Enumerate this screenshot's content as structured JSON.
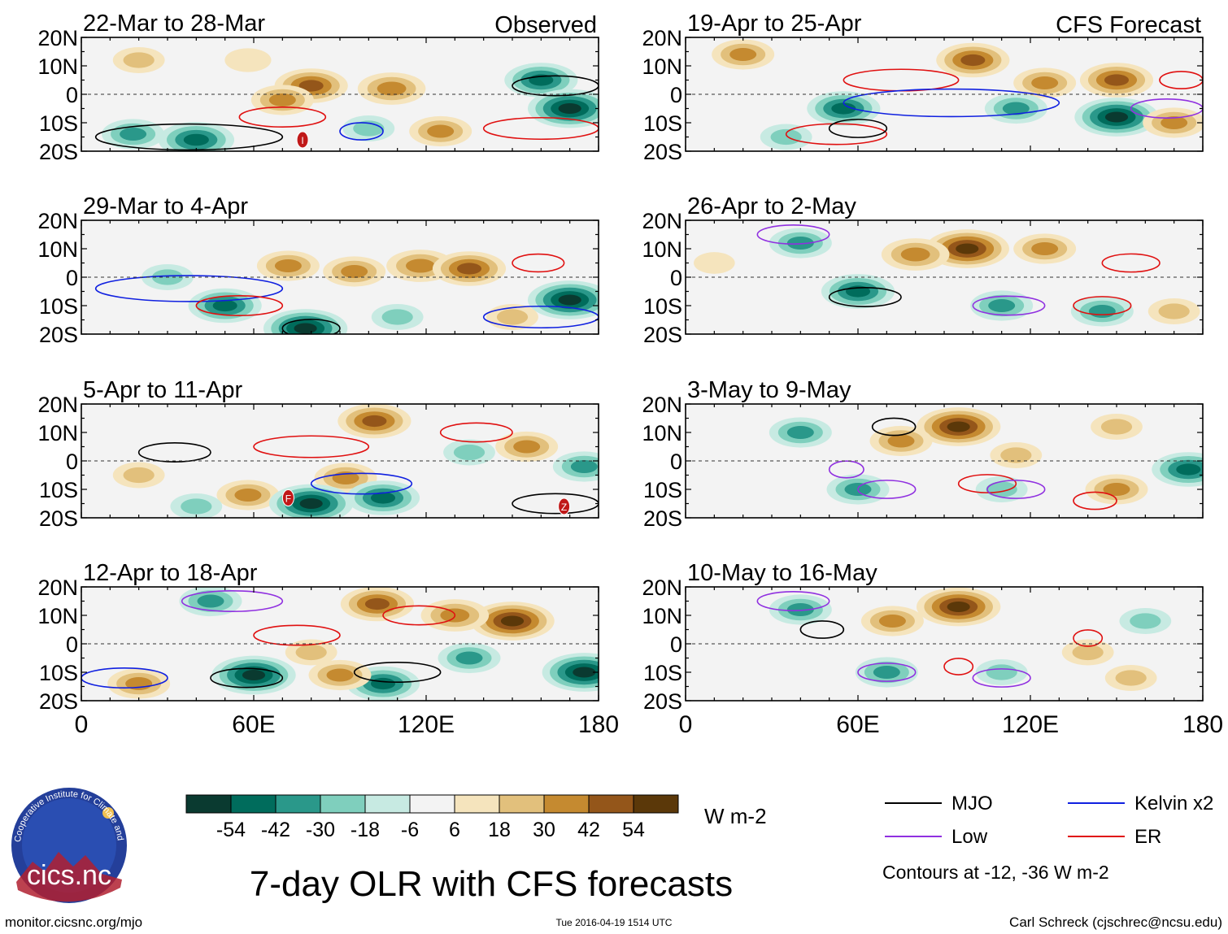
{
  "chart_data": {
    "type": "heatmap",
    "title": "7-day OLR with CFS forecasts",
    "variable": "OLR anomaly",
    "units": "W m-2",
    "x_ticks": [
      "0",
      "60E",
      "120E",
      "180"
    ],
    "x_range": [
      0,
      180
    ],
    "y_ticks": [
      "20N",
      "10N",
      "0",
      "10S",
      "20S"
    ],
    "y_range": [
      -20,
      20
    ],
    "columns": [
      {
        "label": "Observed",
        "panels": [
          {
            "period": "22-Mar to 28-Mar",
            "anomalies": [
              {
                "lon": 20,
                "lat": 12,
                "v": 18
              },
              {
                "lon": 40,
                "lat": -16,
                "v": -45
              },
              {
                "lon": 18,
                "lat": -14,
                "v": -30
              },
              {
                "lon": 80,
                "lat": 3,
                "v": 42
              },
              {
                "lon": 70,
                "lat": -2,
                "v": 30
              },
              {
                "lon": 108,
                "lat": 2,
                "v": 36
              },
              {
                "lon": 125,
                "lat": -13,
                "v": 30
              },
              {
                "lon": 160,
                "lat": 5,
                "v": -42
              },
              {
                "lon": 170,
                "lat": -5,
                "v": -54
              },
              {
                "lon": 100,
                "lat": -12,
                "v": -18
              },
              {
                "lon": 58,
                "lat": 12,
                "v": 12
              }
            ],
            "contours": [
              {
                "wave": "MJO",
                "lat": -15,
                "lon": [
                  5,
                  70
                ]
              },
              {
                "wave": "ER",
                "lat": -8,
                "lon": [
                  55,
                  85
                ]
              },
              {
                "wave": "ER",
                "lat": -12,
                "lon": [
                  140,
                  180
                ]
              },
              {
                "wave": "Kelvin",
                "lat": -13,
                "lon": [
                  90,
                  105
                ]
              },
              {
                "wave": "MJO",
                "lat": 3,
                "lon": [
                  150,
                  180
                ]
              }
            ],
            "cyclones": [
              {
                "label": "I",
                "lon": 77,
                "lat": -16
              }
            ]
          },
          {
            "period": "29-Mar to 4-Apr",
            "anomalies": [
              {
                "lon": 72,
                "lat": 4,
                "v": 30
              },
              {
                "lon": 95,
                "lat": 2,
                "v": 30
              },
              {
                "lon": 118,
                "lat": 4,
                "v": 36
              },
              {
                "lon": 135,
                "lat": 3,
                "v": 42
              },
              {
                "lon": 50,
                "lat": -10,
                "v": -42
              },
              {
                "lon": 78,
                "lat": -18,
                "v": -54
              },
              {
                "lon": 170,
                "lat": -8,
                "v": -54
              },
              {
                "lon": 30,
                "lat": 0,
                "v": -18
              },
              {
                "lon": 110,
                "lat": -14,
                "v": -18
              },
              {
                "lon": 150,
                "lat": -14,
                "v": 18
              }
            ],
            "contours": [
              {
                "wave": "Kelvin",
                "lat": -4,
                "lon": [
                  5,
                  70
                ]
              },
              {
                "wave": "ER",
                "lat": -10,
                "lon": [
                  40,
                  70
                ]
              },
              {
                "wave": "ER",
                "lat": 5,
                "lon": [
                  150,
                  168
                ]
              },
              {
                "wave": "Kelvin",
                "lat": -14,
                "lon": [
                  140,
                  180
                ]
              },
              {
                "wave": "MJO",
                "lat": -18,
                "lon": [
                  70,
                  90
                ]
              }
            ],
            "cyclones": []
          },
          {
            "period": "5-Apr to 11-Apr",
            "anomalies": [
              {
                "lon": 102,
                "lat": 14,
                "v": 42
              },
              {
                "lon": 58,
                "lat": -12,
                "v": 30
              },
              {
                "lon": 92,
                "lat": -6,
                "v": 30
              },
              {
                "lon": 80,
                "lat": -15,
                "v": -54
              },
              {
                "lon": 105,
                "lat": -13,
                "v": -42
              },
              {
                "lon": 155,
                "lat": 5,
                "v": 30
              },
              {
                "lon": 175,
                "lat": -2,
                "v": -30
              },
              {
                "lon": 20,
                "lat": -5,
                "v": 18
              },
              {
                "lon": 135,
                "lat": 3,
                "v": -18
              },
              {
                "lon": 40,
                "lat": -16,
                "v": -18
              }
            ],
            "contours": [
              {
                "wave": "ER",
                "lat": 5,
                "lon": [
                  60,
                  100
                ]
              },
              {
                "wave": "Kelvin",
                "lat": -8,
                "lon": [
                  80,
                  115
                ]
              },
              {
                "wave": "ER",
                "lat": 10,
                "lon": [
                  125,
                  150
                ]
              },
              {
                "wave": "MJO",
                "lat": 3,
                "lon": [
                  20,
                  45
                ]
              },
              {
                "wave": "MJO",
                "lat": -15,
                "lon": [
                  150,
                  180
                ]
              }
            ],
            "cyclones": [
              {
                "label": "F",
                "lon": 72,
                "lat": -13
              },
              {
                "label": "Z",
                "lon": 168,
                "lat": -16
              }
            ]
          },
          {
            "period": "12-Apr to 18-Apr",
            "anomalies": [
              {
                "lon": 150,
                "lat": 8,
                "v": 54
              },
              {
                "lon": 130,
                "lat": 10,
                "v": 36
              },
              {
                "lon": 103,
                "lat": 14,
                "v": 42
              },
              {
                "lon": 80,
                "lat": -3,
                "v": 18
              },
              {
                "lon": 60,
                "lat": -11,
                "v": -54
              },
              {
                "lon": 105,
                "lat": -14,
                "v": -42
              },
              {
                "lon": 175,
                "lat": -10,
                "v": -54
              },
              {
                "lon": 45,
                "lat": 15,
                "v": -30
              },
              {
                "lon": 135,
                "lat": -5,
                "v": -30
              },
              {
                "lon": 90,
                "lat": -11,
                "v": 30
              },
              {
                "lon": 20,
                "lat": -14,
                "v": 30
              }
            ],
            "contours": [
              {
                "wave": "ER",
                "lat": 3,
                "lon": [
                  60,
                  90
                ]
              },
              {
                "wave": "ER",
                "lat": 10,
                "lon": [
                  105,
                  130
                ]
              },
              {
                "wave": "Low",
                "lat": 15,
                "lon": [
                  35,
                  70
                ]
              },
              {
                "wave": "MJO",
                "lat": -12,
                "lon": [
                  45,
                  70
                ]
              },
              {
                "wave": "Kelvin",
                "lat": -12,
                "lon": [
                  0,
                  30
                ]
              },
              {
                "wave": "MJO",
                "lat": -10,
                "lon": [
                  95,
                  125
                ]
              }
            ],
            "cyclones": []
          }
        ]
      },
      {
        "label": "CFS Forecast",
        "panels": [
          {
            "period": "19-Apr to 25-Apr",
            "anomalies": [
              {
                "lon": 100,
                "lat": 12,
                "v": 42
              },
              {
                "lon": 150,
                "lat": 5,
                "v": 42
              },
              {
                "lon": 125,
                "lat": 4,
                "v": 30
              },
              {
                "lon": 55,
                "lat": -5,
                "v": -42
              },
              {
                "lon": 115,
                "lat": -5,
                "v": -30
              },
              {
                "lon": 150,
                "lat": -8,
                "v": -54
              },
              {
                "lon": 35,
                "lat": -15,
                "v": -18
              },
              {
                "lon": 20,
                "lat": 14,
                "v": 30
              },
              {
                "lon": 170,
                "lat": -10,
                "v": 30
              }
            ],
            "contours": [
              {
                "wave": "ER",
                "lat": 5,
                "lon": [
                  55,
                  95
                ]
              },
              {
                "wave": "Kelvin",
                "lat": -3,
                "lon": [
                  55,
                  130
                ]
              },
              {
                "wave": "ER",
                "lat": -14,
                "lon": [
                  35,
                  70
                ]
              },
              {
                "wave": "MJO",
                "lat": -12,
                "lon": [
                  50,
                  70
                ]
              },
              {
                "wave": "Low",
                "lat": -5,
                "lon": [
                  155,
                  180
                ]
              },
              {
                "wave": "ER",
                "lat": 5,
                "lon": [
                  165,
                  180
                ]
              }
            ],
            "cyclones": []
          },
          {
            "period": "26-Apr to 2-May",
            "anomalies": [
              {
                "lon": 98,
                "lat": 10,
                "v": 54
              },
              {
                "lon": 80,
                "lat": 8,
                "v": 36
              },
              {
                "lon": 125,
                "lat": 10,
                "v": 30
              },
              {
                "lon": 60,
                "lat": -5,
                "v": -42
              },
              {
                "lon": 110,
                "lat": -10,
                "v": -30
              },
              {
                "lon": 145,
                "lat": -12,
                "v": -30
              },
              {
                "lon": 40,
                "lat": 12,
                "v": -30
              },
              {
                "lon": 170,
                "lat": -12,
                "v": 18
              },
              {
                "lon": 10,
                "lat": 5,
                "v": 6
              }
            ],
            "contours": [
              {
                "wave": "MJO",
                "lat": -7,
                "lon": [
                  50,
                  75
                ]
              },
              {
                "wave": "ER",
                "lat": 5,
                "lon": [
                  145,
                  165
                ]
              },
              {
                "wave": "Low",
                "lat": -10,
                "lon": [
                  100,
                  125
                ]
              },
              {
                "wave": "ER",
                "lat": -10,
                "lon": [
                  135,
                  155
                ]
              },
              {
                "wave": "Low",
                "lat": 15,
                "lon": [
                  25,
                  50
                ]
              }
            ],
            "cyclones": []
          },
          {
            "period": "3-May to 9-May",
            "anomalies": [
              {
                "lon": 95,
                "lat": 12,
                "v": 54
              },
              {
                "lon": 75,
                "lat": 7,
                "v": 30
              },
              {
                "lon": 115,
                "lat": 2,
                "v": 18
              },
              {
                "lon": 150,
                "lat": 12,
                "v": 18
              },
              {
                "lon": 60,
                "lat": -10,
                "v": -30
              },
              {
                "lon": 40,
                "lat": 10,
                "v": -30
              },
              {
                "lon": 175,
                "lat": -3,
                "v": -42
              },
              {
                "lon": 110,
                "lat": -10,
                "v": -18
              },
              {
                "lon": 150,
                "lat": -10,
                "v": 30
              }
            ],
            "contours": [
              {
                "wave": "MJO",
                "lat": 12,
                "lon": [
                  65,
                  80
                ]
              },
              {
                "wave": "Low",
                "lat": -10,
                "lon": [
                  60,
                  80
                ]
              },
              {
                "wave": "ER",
                "lat": -8,
                "lon": [
                  95,
                  115
                ]
              },
              {
                "wave": "Low",
                "lat": -10,
                "lon": [
                  105,
                  125
                ]
              },
              {
                "wave": "ER",
                "lat": -14,
                "lon": [
                  135,
                  150
                ]
              },
              {
                "wave": "Low",
                "lat": -3,
                "lon": [
                  50,
                  62
                ]
              }
            ],
            "cyclones": []
          },
          {
            "period": "10-May to 16-May",
            "anomalies": [
              {
                "lon": 95,
                "lat": 13,
                "v": 54
              },
              {
                "lon": 72,
                "lat": 8,
                "v": 30
              },
              {
                "lon": 140,
                "lat": -3,
                "v": 18
              },
              {
                "lon": 70,
                "lat": -10,
                "v": -30
              },
              {
                "lon": 40,
                "lat": 12,
                "v": -30
              },
              {
                "lon": 110,
                "lat": -10,
                "v": -18
              },
              {
                "lon": 160,
                "lat": 8,
                "v": -18
              },
              {
                "lon": 155,
                "lat": -12,
                "v": 18
              }
            ],
            "contours": [
              {
                "wave": "MJO",
                "lat": 5,
                "lon": [
                  40,
                  55
                ]
              },
              {
                "wave": "Low",
                "lat": -10,
                "lon": [
                  60,
                  80
                ]
              },
              {
                "wave": "Low",
                "lat": -12,
                "lon": [
                  100,
                  120
                ]
              },
              {
                "wave": "Low",
                "lat": 15,
                "lon": [
                  25,
                  50
                ]
              },
              {
                "wave": "ER",
                "lat": -8,
                "lon": [
                  90,
                  100
                ]
              },
              {
                "wave": "ER",
                "lat": 2,
                "lon": [
                  135,
                  145
                ]
              }
            ],
            "cyclones": []
          }
        ]
      }
    ],
    "colorbar": {
      "levels": [
        "-54",
        "-42",
        "-30",
        "-18",
        "-6",
        "6",
        "18",
        "30",
        "42",
        "54"
      ],
      "colors": [
        "#0a3a30",
        "#006c5c",
        "#2a988a",
        "#7fcfbd",
        "#c7eae2",
        "#f3f3f3",
        "#f5e4bd",
        "#e2c07c",
        "#c58a30",
        "#94561a",
        "#5b3809"
      ],
      "units": "W m-2"
    },
    "legend": {
      "items": [
        {
          "label": "MJO",
          "color": "#000000"
        },
        {
          "label": "Kelvin x2",
          "color": "#1020e0"
        },
        {
          "label": "Low",
          "color": "#9030e0"
        },
        {
          "label": "ER",
          "color": "#e01010"
        }
      ],
      "note": "Contours at -12, -36 W m-2"
    }
  },
  "footer": {
    "url": "monitor.cicsnc.org/mjo",
    "timestamp": "Tue 2016-04-19 1514 UTC",
    "author": "Carl Schreck (cjschrec@ncsu.edu)"
  },
  "logo": {
    "text": "cics.nc",
    "ring_text": "Cooperative Institute for Climate and Satellites"
  }
}
